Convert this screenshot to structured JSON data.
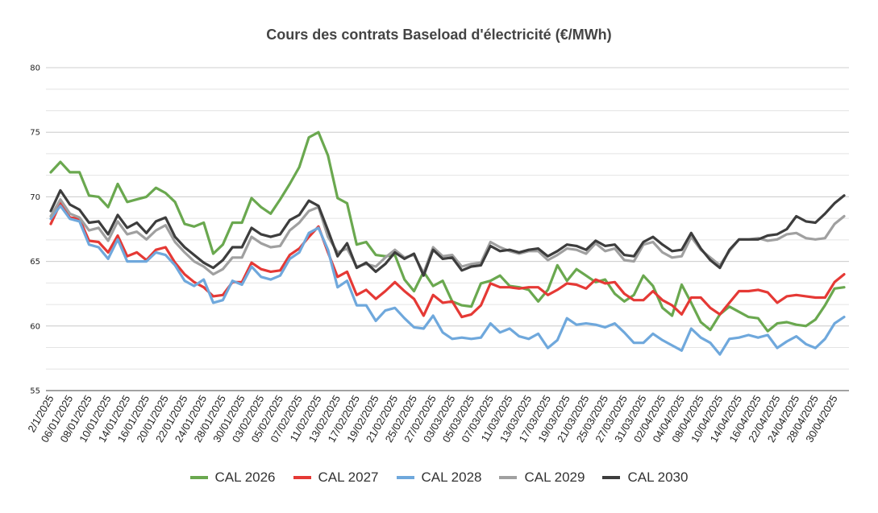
{
  "chart_data": {
    "type": "line",
    "title": "Cours des contrats Baseload d'électricité (€/MWh)",
    "ylim": [
      55,
      80
    ],
    "yticks": [
      55,
      60,
      65,
      70,
      75,
      80
    ],
    "grid": true,
    "legend_position": "bottom",
    "x": [
      "2/1/2025",
      "03/01/2025",
      "06/01/2025",
      "07/01/2025",
      "08/01/2025",
      "09/01/2025",
      "10/01/2025",
      "13/01/2025",
      "14/01/2025",
      "15/01/2025",
      "16/01/2025",
      "17/01/2025",
      "20/01/2025",
      "21/01/2025",
      "22/01/2025",
      "23/01/2025",
      "24/01/2025",
      "27/01/2025",
      "28/01/2025",
      "29/01/2025",
      "30/01/2025",
      "31/01/2025",
      "03/02/2025",
      "04/02/2025",
      "05/02/2025",
      "06/02/2025",
      "07/02/2025",
      "10/02/2025",
      "11/02/2025",
      "12/02/2025",
      "13/02/2025",
      "14/02/2025",
      "17/02/2025",
      "18/02/2025",
      "19/02/2025",
      "20/02/2025",
      "21/02/2025",
      "24/02/2025",
      "25/02/2025",
      "26/02/2025",
      "27/02/2025",
      "28/02/2025",
      "03/03/2025",
      "04/03/2025",
      "05/03/2025",
      "06/03/2025",
      "07/03/2025",
      "10/03/2025",
      "11/03/2025",
      "12/03/2025",
      "13/03/2025",
      "14/03/2025",
      "17/03/2025",
      "18/03/2025",
      "19/03/2025",
      "20/03/2025",
      "21/03/2025",
      "24/03/2025",
      "25/03/2025",
      "26/03/2025",
      "27/03/2025",
      "28/03/2025",
      "31/03/2025",
      "01/04/2025",
      "02/04/2025",
      "03/04/2025",
      "04/04/2025",
      "07/04/2025",
      "08/04/2025",
      "09/04/2025",
      "10/04/2025",
      "11/04/2025",
      "14/04/2025",
      "15/04/2025",
      "16/04/2025",
      "17/04/2025",
      "22/04/2025",
      "23/04/2025",
      "24/04/2025",
      "25/04/2025",
      "28/04/2025",
      "29/04/2025",
      "30/04/2025",
      "01/05/2025"
    ],
    "xtick_labels": [
      "2/1/2025",
      "06/01/2025",
      "08/01/2025",
      "10/01/2025",
      "14/01/2025",
      "16/01/2025",
      "20/01/2025",
      "22/01/2025",
      "24/01/2025",
      "28/01/2025",
      "30/01/2025",
      "03/02/2025",
      "05/02/2025",
      "07/02/2025",
      "11/02/2025",
      "13/02/2025",
      "17/02/2025",
      "19/02/2025",
      "21/02/2025",
      "25/02/2025",
      "27/02/2025",
      "03/03/2025",
      "05/03/2025",
      "07/03/2025",
      "11/03/2025",
      "13/03/2025",
      "17/03/2025",
      "19/03/2025",
      "21/03/2025",
      "25/03/2025",
      "27/03/2025",
      "31/03/2025",
      "02/04/2025",
      "04/04/2025",
      "08/04/2025",
      "10/04/2025",
      "14/04/2025",
      "16/04/2025",
      "22/04/2025",
      "24/04/2025",
      "28/04/2025",
      "30/04/2025"
    ],
    "series": [
      {
        "name": "CAL 2026",
        "color": "#6aa84f",
        "values": [
          71.9,
          72.7,
          71.9,
          71.9,
          70.1,
          70.0,
          69.2,
          71.0,
          69.6,
          69.8,
          70.0,
          70.7,
          70.3,
          69.6,
          67.9,
          67.7,
          68.0,
          65.6,
          66.3,
          68.0,
          68.0,
          69.9,
          69.2,
          68.7,
          69.8,
          71.0,
          72.3,
          74.6,
          75.0,
          73.2,
          69.9,
          69.5,
          66.3,
          66.5,
          65.5,
          65.4,
          65.5,
          63.6,
          62.7,
          64.2,
          63.1,
          63.5,
          61.9,
          61.6,
          61.5,
          63.3,
          63.5,
          63.9,
          63.1,
          63.0,
          62.8,
          61.9,
          62.8,
          64.7,
          63.5,
          64.4,
          63.9,
          63.4,
          63.6,
          62.5,
          61.9,
          62.4,
          63.9,
          63.1,
          61.4,
          60.8,
          63.2,
          61.8,
          60.3,
          59.7,
          60.9,
          61.5,
          61.1,
          60.7,
          60.6,
          59.6,
          60.2,
          60.3,
          60.1,
          60.0,
          60.5,
          61.6,
          62.9,
          63.0
        ]
      },
      {
        "name": "CAL 2027",
        "color": "#e53935",
        "values": [
          67.9,
          69.5,
          68.4,
          68.3,
          66.6,
          66.5,
          65.7,
          67.0,
          65.4,
          65.7,
          65.1,
          65.9,
          66.1,
          64.9,
          64.0,
          63.4,
          63.0,
          62.3,
          62.4,
          63.4,
          63.4,
          64.9,
          64.4,
          64.2,
          64.3,
          65.5,
          66.0,
          66.9,
          67.7,
          65.7,
          63.8,
          64.2,
          62.4,
          62.8,
          62.1,
          62.7,
          63.4,
          62.7,
          62.1,
          60.8,
          62.4,
          61.8,
          61.9,
          60.7,
          60.9,
          61.6,
          63.3,
          63.0,
          63.0,
          62.9,
          63.0,
          63.0,
          62.4,
          62.8,
          63.3,
          63.2,
          62.9,
          63.6,
          63.3,
          63.4,
          62.5,
          62.0,
          62.0,
          62.7,
          62.0,
          61.6,
          60.9,
          62.2,
          62.2,
          61.4,
          60.9,
          61.8,
          62.7,
          62.7,
          62.8,
          62.6,
          61.8,
          62.3,
          62.4,
          62.3,
          62.2,
          62.2,
          63.4,
          64.0
        ]
      },
      {
        "name": "CAL 2028",
        "color": "#6fa8dc",
        "values": [
          68.3,
          69.3,
          68.3,
          68.1,
          66.3,
          66.1,
          65.2,
          66.7,
          65.0,
          65.0,
          65.0,
          65.7,
          65.5,
          64.7,
          63.5,
          63.1,
          63.6,
          61.8,
          62.0,
          63.5,
          63.2,
          64.6,
          63.8,
          63.6,
          63.9,
          65.2,
          65.7,
          67.2,
          67.6,
          65.9,
          63.0,
          63.5,
          61.6,
          61.6,
          60.4,
          61.2,
          61.4,
          60.6,
          59.9,
          59.8,
          60.8,
          59.5,
          59.0,
          59.1,
          59.0,
          59.1,
          60.2,
          59.5,
          59.8,
          59.2,
          59.0,
          59.4,
          58.3,
          58.9,
          60.6,
          60.1,
          60.2,
          60.1,
          59.9,
          60.2,
          59.5,
          58.7,
          58.7,
          59.4,
          58.9,
          58.5,
          58.1,
          59.8,
          59.1,
          58.7,
          57.8,
          59.0,
          59.1,
          59.3,
          59.1,
          59.3,
          58.3,
          58.8,
          59.2,
          58.6,
          58.3,
          59.0,
          60.2,
          60.7
        ]
      },
      {
        "name": "CAL 2029",
        "color": "#a0a0a0",
        "values": [
          68.5,
          69.8,
          68.7,
          68.4,
          67.4,
          67.6,
          66.6,
          68.1,
          67.1,
          67.3,
          66.7,
          67.4,
          67.8,
          66.5,
          65.7,
          65.0,
          64.6,
          64.0,
          64.4,
          65.3,
          65.3,
          66.9,
          66.4,
          66.1,
          66.2,
          67.4,
          68.0,
          68.9,
          69.2,
          66.9,
          65.7,
          66.0,
          64.6,
          64.8,
          64.6,
          65.3,
          65.9,
          65.3,
          65.5,
          64.1,
          66.1,
          65.4,
          65.5,
          64.6,
          64.8,
          64.9,
          66.5,
          66.1,
          65.8,
          65.6,
          65.8,
          65.8,
          65.1,
          65.5,
          66.0,
          65.9,
          65.6,
          66.4,
          65.8,
          66.0,
          65.1,
          65.0,
          66.3,
          66.5,
          65.7,
          65.3,
          65.4,
          66.9,
          65.9,
          65.3,
          64.7,
          65.8,
          66.7,
          66.7,
          66.8,
          66.6,
          66.7,
          67.1,
          67.2,
          66.8,
          66.7,
          66.8,
          67.9,
          68.5
        ]
      },
      {
        "name": "CAL 2030",
        "color": "#3d3d3d",
        "values": [
          68.9,
          70.5,
          69.4,
          69.0,
          68.0,
          68.1,
          67.1,
          68.6,
          67.6,
          68.0,
          67.2,
          68.1,
          68.4,
          66.9,
          66.1,
          65.5,
          64.9,
          64.5,
          65.1,
          66.1,
          66.1,
          67.6,
          67.1,
          66.9,
          67.1,
          68.2,
          68.6,
          69.7,
          69.3,
          67.4,
          65.4,
          66.4,
          64.5,
          64.9,
          64.2,
          64.8,
          65.7,
          65.2,
          65.6,
          63.9,
          65.9,
          65.2,
          65.3,
          64.3,
          64.6,
          64.7,
          66.2,
          65.8,
          65.9,
          65.7,
          65.9,
          66.0,
          65.4,
          65.8,
          66.3,
          66.2,
          65.9,
          66.6,
          66.2,
          66.3,
          65.5,
          65.4,
          66.5,
          66.9,
          66.3,
          65.8,
          65.9,
          67.2,
          66.0,
          65.1,
          64.5,
          65.9,
          66.7,
          66.7,
          66.7,
          67.0,
          67.1,
          67.5,
          68.5,
          68.1,
          68.0,
          68.7,
          69.5,
          70.1
        ]
      }
    ]
  }
}
